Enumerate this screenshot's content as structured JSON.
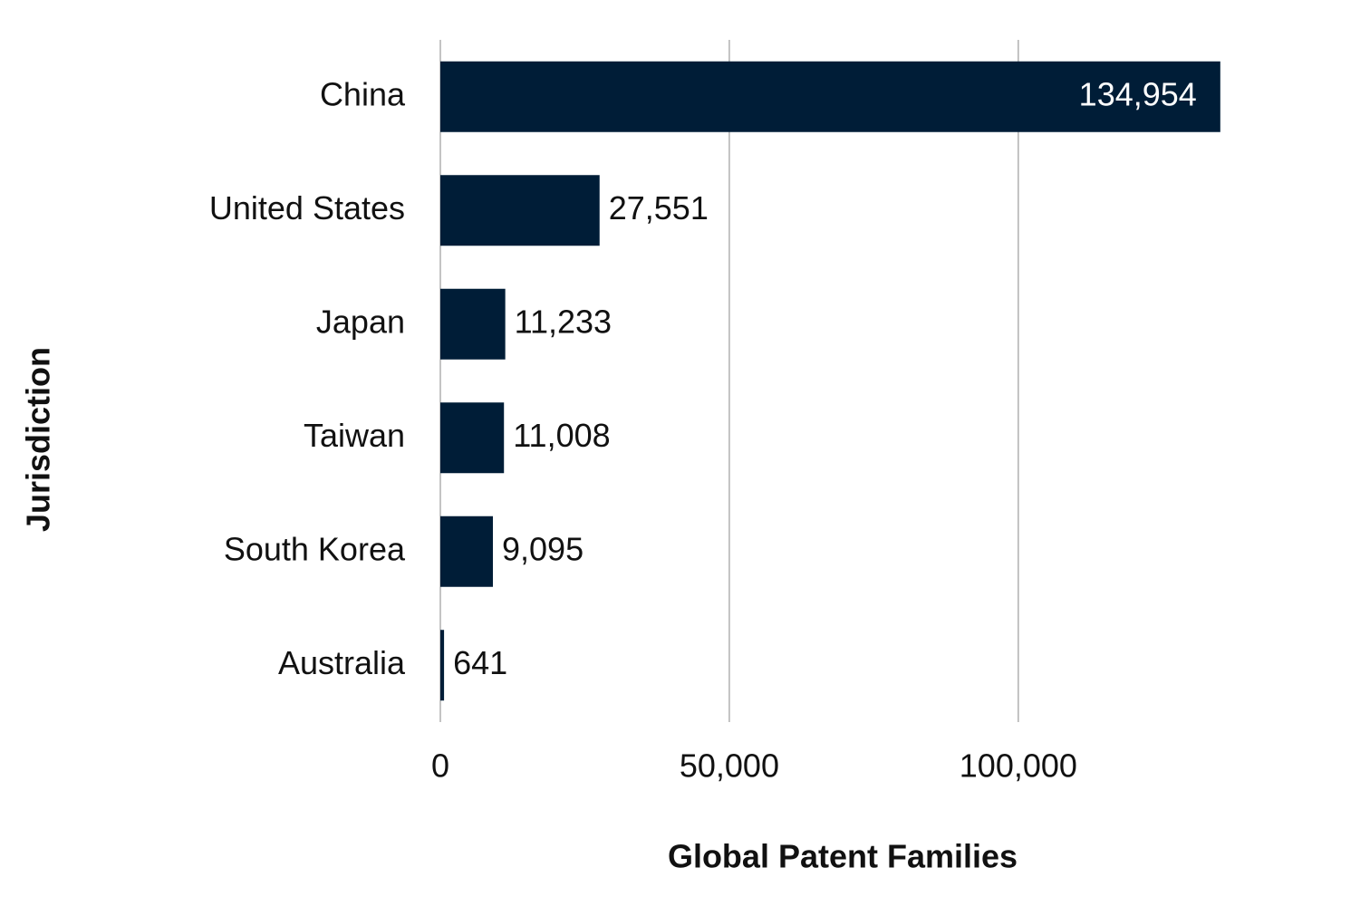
{
  "chart_data": {
    "type": "bar",
    "orientation": "horizontal",
    "x_label": "Global Patent Families",
    "y_label": "Jurisdiction",
    "categories": [
      "China",
      "United States",
      "Japan",
      "Taiwan",
      "South Korea",
      "Australia"
    ],
    "values": [
      134954,
      27551,
      11233,
      11008,
      9095,
      641
    ],
    "value_labels": [
      "134,954",
      "27,551",
      "11,233",
      "11,008",
      "9,095",
      "641"
    ],
    "color": "#001d37",
    "xlim": [
      0,
      140000
    ],
    "xticks": [
      0,
      {
        "value": 50000,
        "label": "50,000"
      },
      {
        "value": 100000,
        "label": "100,000"
      }
    ],
    "grid": true
  }
}
